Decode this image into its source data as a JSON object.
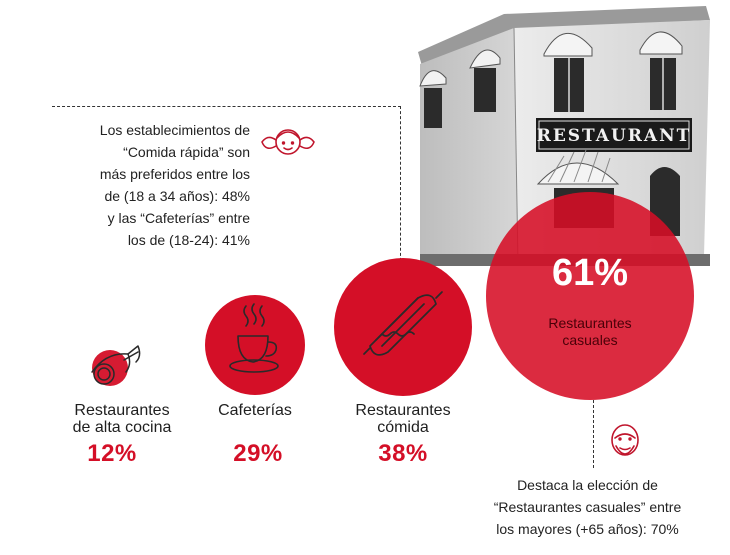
{
  "colors": {
    "accent": "#d40f27",
    "text": "#1d1d1d"
  },
  "top_note": {
    "lines": [
      "Los establecimientos de",
      "“Comida rápida” son",
      "más preferidos entre los",
      "de (18 a 34 años): 48%",
      "y las “Cafeterías” entre",
      "los de (18-24): 41%"
    ],
    "icon": "girl-face-icon"
  },
  "bottom_note": {
    "lines": [
      "Destaca la elección de",
      "“Restaurantes casuales” entre",
      "los mayores (+65 años): 70%"
    ],
    "icon": "old-man-face-icon"
  },
  "building": {
    "sign": "RESTAURANT"
  },
  "categories": [
    {
      "label_lines": [
        "Restaurantes",
        "de alta cocina"
      ],
      "value": "12%",
      "icon": "fish-icon"
    },
    {
      "label_lines": [
        "Cafeterías"
      ],
      "value": "29%",
      "icon": "coffee-cup-icon"
    },
    {
      "label_lines": [
        "Restaurantes",
        "cómida"
      ],
      "value": "38%",
      "icon": "hotdog-icon"
    }
  ],
  "featured": {
    "value": "61%",
    "label_lines": [
      "Restaurantes",
      "casuales"
    ]
  }
}
